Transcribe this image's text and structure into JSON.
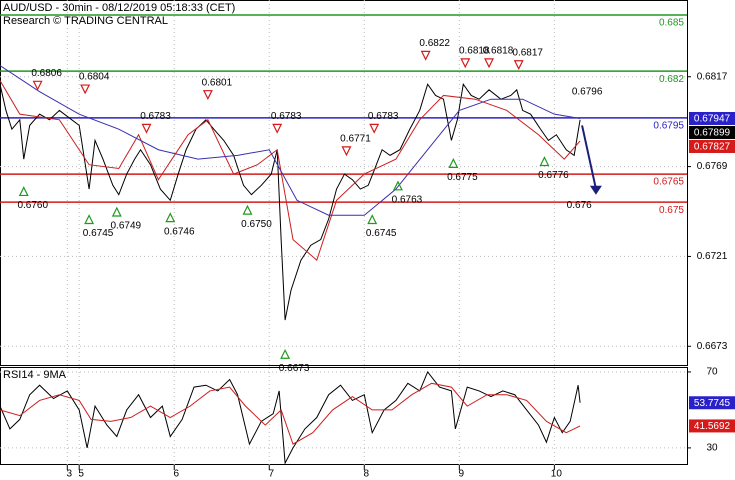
{
  "chart_data": [
    {
      "type": "line",
      "title": "AUD/USD - 30min - 08/12/2019 05:18:33 (CET)",
      "subtitle": "Research © TRADING CENTRAL",
      "xlim": [
        0,
        347
      ],
      "ylim": [
        0.6663,
        0.6858
      ],
      "yticks": [
        0.6817,
        0.6769,
        0.6721,
        0.6673
      ],
      "grid": true,
      "series": [
        {
          "color": "#000000",
          "x": [
            0,
            3,
            6,
            10,
            12,
            15,
            20,
            25,
            30,
            35,
            40,
            45,
            48,
            52,
            57,
            60,
            64,
            68,
            71,
            76,
            81,
            86,
            90,
            94,
            99,
            104,
            108,
            113,
            118,
            123,
            127,
            132,
            137,
            140,
            142,
            144,
            147,
            152,
            157,
            162,
            166,
            170,
            174,
            178,
            182,
            186,
            189,
            193,
            197,
            202,
            207,
            212,
            216,
            220,
            224,
            228,
            231,
            234,
            238,
            242,
            247,
            253,
            258,
            261,
            264,
            268,
            273,
            277,
            281,
            286,
            290,
            293
          ],
          "values": [
            0.6813,
            0.6799,
            0.6789,
            0.6794,
            0.6773,
            0.6791,
            0.6797,
            0.6794,
            0.6799,
            0.6795,
            0.6791,
            0.6757,
            0.6783,
            0.6773,
            0.6759,
            0.6754,
            0.6765,
            0.6773,
            0.6778,
            0.677,
            0.6757,
            0.6751,
            0.6765,
            0.6778,
            0.6789,
            0.6794,
            0.6789,
            0.6783,
            0.6775,
            0.6759,
            0.6754,
            0.6759,
            0.6765,
            0.6778,
            0.673,
            0.6687,
            0.6703,
            0.6719,
            0.6727,
            0.673,
            0.6741,
            0.6757,
            0.6765,
            0.6762,
            0.6757,
            0.6759,
            0.6767,
            0.6778,
            0.6775,
            0.6778,
            0.6789,
            0.6799,
            0.6813,
            0.6807,
            0.6805,
            0.6783,
            0.6794,
            0.6813,
            0.6807,
            0.6805,
            0.681,
            0.6805,
            0.6807,
            0.681,
            0.6799,
            0.6797,
            0.6789,
            0.6783,
            0.6786,
            0.6778,
            0.6775,
            0.6794
          ]
        },
        {
          "color": "#cc1f1f",
          "x": [
            0,
            10,
            30,
            45,
            60,
            70,
            80,
            95,
            105,
            118,
            130,
            140,
            148,
            160,
            170,
            184,
            200,
            212,
            224,
            240,
            256,
            272,
            285,
            293
          ],
          "values": [
            0.6815,
            0.6797,
            0.6794,
            0.677,
            0.6768,
            0.6786,
            0.6762,
            0.6786,
            0.6794,
            0.6765,
            0.677,
            0.6778,
            0.673,
            0.6719,
            0.6751,
            0.6765,
            0.6773,
            0.6794,
            0.6807,
            0.6805,
            0.6799,
            0.6786,
            0.6773,
            0.67827
          ]
        },
        {
          "color": "#3a2fb0",
          "x": [
            0,
            20,
            40,
            60,
            80,
            100,
            120,
            136,
            150,
            166,
            184,
            200,
            216,
            232,
            248,
            264,
            280,
            293
          ],
          "values": [
            0.6823,
            0.6809,
            0.6797,
            0.6789,
            0.6778,
            0.6773,
            0.6775,
            0.6778,
            0.6751,
            0.6743,
            0.6743,
            0.6757,
            0.6778,
            0.6799,
            0.6805,
            0.6805,
            0.6797,
            0.67947
          ]
        }
      ],
      "levels": [
        {
          "value": 0.685,
          "color": "#1f9a1f"
        },
        {
          "value": 0.682,
          "color": "#1f9a1f"
        },
        {
          "value": 0.6795,
          "color": "#2a22c8"
        },
        {
          "value": 0.6765,
          "color": "#d61a1a"
        },
        {
          "value": 0.675,
          "color": "#d61a1a"
        }
      ],
      "annotations": [
        {
          "kind": "high",
          "x": 19,
          "value": 0.6806
        },
        {
          "kind": "high",
          "x": 43,
          "value": 0.6804
        },
        {
          "kind": "high",
          "x": 74,
          "value": 0.6783
        },
        {
          "kind": "high",
          "x": 105,
          "value": 0.6801
        },
        {
          "kind": "high",
          "x": 140,
          "value": 0.6783
        },
        {
          "kind": "high",
          "x": 175,
          "value": 0.6771
        },
        {
          "kind": "high",
          "x": 189,
          "value": 0.6783
        },
        {
          "kind": "high",
          "x": 215,
          "value": 0.6822
        },
        {
          "kind": "high",
          "x": 235,
          "value": 0.6818
        },
        {
          "kind": "high",
          "x": 247,
          "value": 0.6818
        },
        {
          "kind": "high",
          "x": 262,
          "value": 0.6817
        },
        {
          "kind": "low",
          "x": 12,
          "value": 0.676,
          "label": "0.6760"
        },
        {
          "kind": "low",
          "x": 45,
          "value": 0.6745
        },
        {
          "kind": "low",
          "x": 59,
          "value": 0.6749
        },
        {
          "kind": "low",
          "x": 86,
          "value": 0.6746
        },
        {
          "kind": "low",
          "x": 125,
          "value": 0.675,
          "label": "0.6750"
        },
        {
          "kind": "low",
          "x": 144,
          "value": 0.6673
        },
        {
          "kind": "low",
          "x": 188,
          "value": 0.6745
        },
        {
          "kind": "low",
          "x": 201,
          "value": 0.6763
        },
        {
          "kind": "low",
          "x": 229,
          "value": 0.6775
        },
        {
          "kind": "low",
          "x": 275,
          "value": 0.6776
        },
        {
          "kind": "high",
          "x": 292,
          "value": 0.6796,
          "marker": false
        },
        {
          "kind": "low",
          "x": 288,
          "value": 0.676,
          "marker": false
        }
      ],
      "forecast": {
        "color": "#1a1f7a",
        "x": [
          294,
          301
        ],
        "values": [
          0.6791,
          0.6755
        ]
      },
      "price_boxes": [
        {
          "value": 0.67947,
          "color": "#2a22c8"
        },
        {
          "value": 0.67899,
          "color": "#000000"
        },
        {
          "value": 0.67827,
          "color": "#d61a1a"
        }
      ]
    },
    {
      "type": "line",
      "title": "RSI14 - 9MA",
      "xlim": [
        0,
        347
      ],
      "ylim": [
        21,
        72.6
      ],
      "yticks": [
        70,
        30
      ],
      "xticks": [
        {
          "value": 34,
          "label": "3"
        },
        {
          "value": 40,
          "label": "5"
        },
        {
          "value": 88,
          "label": "6"
        },
        {
          "value": 136,
          "label": "7"
        },
        {
          "value": 184,
          "label": "8"
        },
        {
          "value": 232,
          "label": "9"
        },
        {
          "value": 280,
          "label": "10"
        }
      ],
      "grid": true,
      "series": [
        {
          "color": "#000000",
          "x": [
            0,
            5,
            10,
            15,
            20,
            27,
            34,
            40,
            44,
            48,
            54,
            59,
            64,
            70,
            76,
            82,
            86,
            92,
            98,
            104,
            110,
            116,
            120,
            126,
            132,
            138,
            141,
            144,
            148,
            154,
            160,
            166,
            172,
            178,
            184,
            188,
            194,
            200,
            206,
            212,
            216,
            222,
            228,
            230,
            236,
            242,
            248,
            254,
            260,
            266,
            272,
            276,
            280,
            284,
            288,
            292,
            293
          ],
          "values": [
            52,
            40,
            45,
            58,
            63,
            56,
            60,
            50,
            30,
            52,
            42,
            36,
            50,
            58,
            46,
            52,
            36,
            45,
            62,
            63,
            60,
            66,
            58,
            32,
            44,
            48,
            60,
            22,
            30,
            40,
            46,
            58,
            63,
            55,
            58,
            38,
            50,
            55,
            64,
            60,
            70,
            62,
            60,
            40,
            62,
            60,
            57,
            60,
            58,
            50,
            42,
            33,
            46,
            38,
            44,
            63,
            53.7745
          ]
        },
        {
          "color": "#cc1f1f",
          "x": [
            0,
            10,
            20,
            30,
            40,
            46,
            56,
            66,
            76,
            86,
            96,
            106,
            116,
            124,
            134,
            142,
            148,
            158,
            168,
            178,
            188,
            198,
            208,
            218,
            228,
            236,
            246,
            256,
            266,
            276,
            286,
            293
          ],
          "values": [
            50,
            47,
            55,
            58,
            55,
            45,
            44,
            46,
            52,
            46,
            52,
            60,
            62,
            52,
            42,
            50,
            32,
            38,
            50,
            57,
            50,
            50,
            58,
            64,
            62,
            52,
            58,
            58,
            55,
            44,
            38,
            41.5692
          ]
        }
      ],
      "value_boxes": [
        {
          "value": 53.7745,
          "color": "#2a22c8"
        },
        {
          "value": 41.5692,
          "color": "#d61a1a"
        }
      ]
    }
  ]
}
